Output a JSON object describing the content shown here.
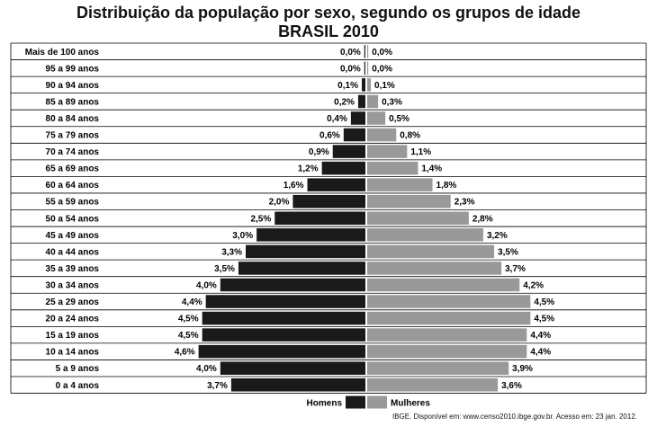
{
  "chart_data": {
    "type": "bar",
    "title": "Distribuição da população por sexo, segundo os grupos de idade",
    "subtitle": "BRASIL 2010",
    "categories": [
      "Mais de 100 anos",
      "95 a 99 anos",
      "90 a 94 anos",
      "85 a 89 anos",
      "80 a 84 anos",
      "75 a 79 anos",
      "70 a 74 anos",
      "65 a 69 anos",
      "60 a 64 anos",
      "55 a 59 anos",
      "50 a 54 anos",
      "45 a 49 anos",
      "40 a 44 anos",
      "35 a 39 anos",
      "30 a 34 anos",
      "25 a 29 anos",
      "20 a 24 anos",
      "15 a 19 anos",
      "10 a 14 anos",
      "5 a 9 anos",
      "0 a 4 anos"
    ],
    "series": [
      {
        "name": "Homens",
        "color": "#1a1a1a",
        "values": [
          0.0,
          0.0,
          0.1,
          0.2,
          0.4,
          0.6,
          0.9,
          1.2,
          1.6,
          2.0,
          2.5,
          3.0,
          3.3,
          3.5,
          4.0,
          4.4,
          4.5,
          4.5,
          4.6,
          4.0,
          3.7
        ],
        "labels": [
          "0,0%",
          "0,0%",
          "0,1%",
          "0,2%",
          "0,4%",
          "0,6%",
          "0,9%",
          "1,2%",
          "1,6%",
          "2,0%",
          "2,5%",
          "3,0%",
          "3,3%",
          "3,5%",
          "4,0%",
          "4,4%",
          "4,5%",
          "4,5%",
          "4,6%",
          "4,0%",
          "3,7%"
        ]
      },
      {
        "name": "Mulheres",
        "color": "#999999",
        "values": [
          0.0,
          0.0,
          0.1,
          0.3,
          0.5,
          0.8,
          1.1,
          1.4,
          1.8,
          2.3,
          2.8,
          3.2,
          3.5,
          3.7,
          4.2,
          4.5,
          4.5,
          4.4,
          4.4,
          3.9,
          3.6
        ],
        "labels": [
          "0,0%",
          "0,0%",
          "0,1%",
          "0,3%",
          "0,5%",
          "0,8%",
          "1,1%",
          "1,4%",
          "1,8%",
          "2,3%",
          "2,8%",
          "3,2%",
          "3,5%",
          "3,7%",
          "4,2%",
          "4,5%",
          "4,5%",
          "4,4%",
          "4,4%",
          "3,9%",
          "3,6%"
        ]
      }
    ],
    "unit": "%",
    "grid": true,
    "legend": "bottom-center"
  },
  "source": "IBGE. Disponível em: www.censo2010.ibge.gov.br. Acesso em: 23 jan. 2012."
}
